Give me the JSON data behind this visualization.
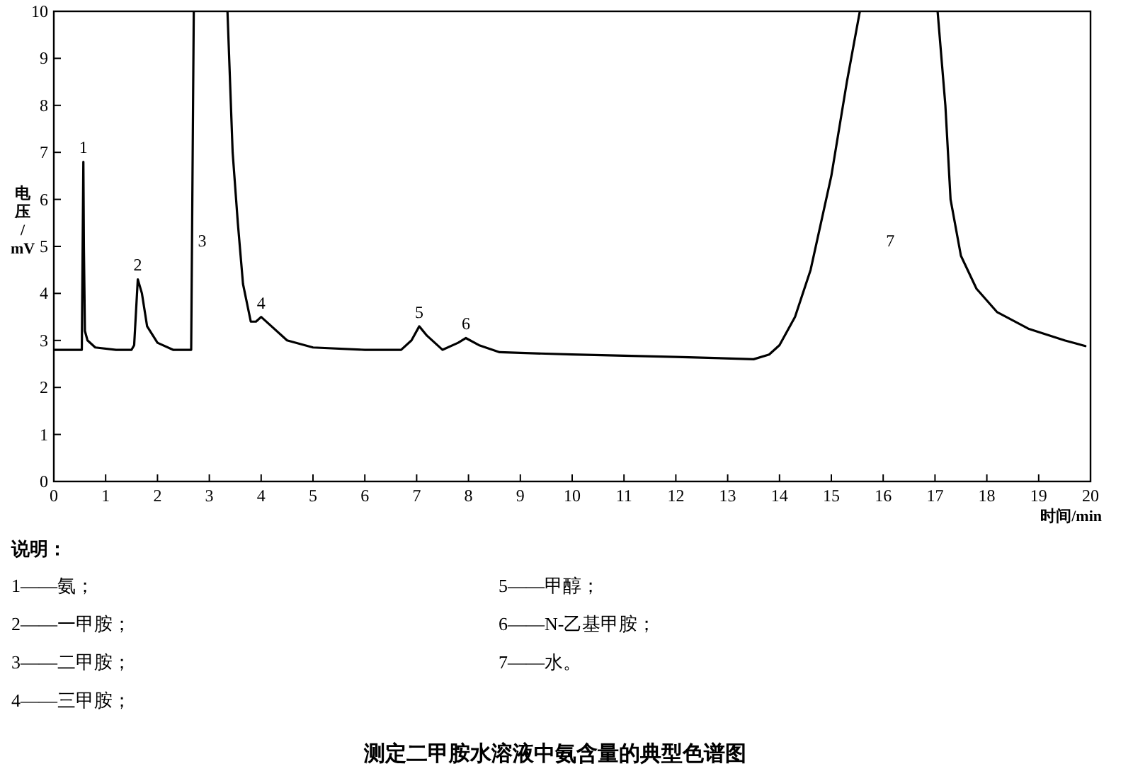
{
  "chart_data": {
    "type": "line",
    "title": "测定二甲胺水溶液中氨含量的典型色谱图",
    "xlabel": "时间/min",
    "ylabel": "电压/mV",
    "x": [
      0,
      0.54,
      0.56,
      0.57,
      0.58,
      0.6,
      0.65,
      0.8,
      1.2,
      1.5,
      1.55,
      1.62,
      1.7,
      1.8,
      2.0,
      2.3,
      2.65,
      2.7,
      2.72,
      3.33,
      3.35,
      3.45,
      3.55,
      3.65,
      3.8,
      3.9,
      4.0,
      4.2,
      4.5,
      5.0,
      6.0,
      6.7,
      6.9,
      7.05,
      7.2,
      7.5,
      7.8,
      7.95,
      8.2,
      8.6,
      10,
      12,
      13.5,
      13.8,
      14.0,
      14.3,
      14.6,
      15.0,
      15.3,
      15.55,
      15.6,
      17.0,
      17.05,
      17.2,
      17.3,
      17.5,
      17.8,
      18.2,
      18.8,
      19.5,
      19.9
    ],
    "series": [
      {
        "color": "#000000",
        "values": [
          2.8,
          2.8,
          5.5,
          6.8,
          5.0,
          3.2,
          3.0,
          2.85,
          2.8,
          2.8,
          2.9,
          4.3,
          4.0,
          3.3,
          2.95,
          2.8,
          2.8,
          10,
          null,
          null,
          10,
          7,
          5.5,
          4.2,
          3.4,
          3.4,
          3.5,
          3.3,
          3.0,
          2.85,
          2.8,
          2.8,
          3.0,
          3.3,
          3.1,
          2.8,
          2.95,
          3.05,
          2.9,
          2.75,
          2.7,
          2.65,
          2.6,
          2.7,
          2.9,
          3.5,
          4.5,
          6.5,
          8.5,
          10,
          null,
          null,
          10,
          8,
          6,
          4.8,
          4.1,
          3.6,
          3.25,
          3.0,
          2.88
        ]
      }
    ],
    "xlim": [
      0,
      20
    ],
    "xticks": [
      0,
      1,
      2,
      3,
      4,
      5,
      6,
      7,
      8,
      9,
      10,
      11,
      12,
      13,
      14,
      15,
      16,
      17,
      18,
      19,
      20
    ],
    "ylim": [
      0,
      10
    ],
    "yticks": [
      0,
      1,
      2,
      3,
      4,
      5,
      6,
      7,
      8,
      9,
      10
    ],
    "grid": false,
    "marker": "none",
    "line_style": "solid",
    "annotations": [
      {
        "text": "1",
        "x": 0.57,
        "y": 6.8
      },
      {
        "text": "2",
        "x": 1.62,
        "y": 4.3
      },
      "3",
      {
        "text": "4",
        "x": 4.0,
        "y": 3.5
      },
      {
        "text": "5",
        "x": 7.05,
        "y": 3.3
      },
      {
        "text": "6",
        "x": 7.95,
        "y": 3.05
      },
      "7",
      "说明：",
      "1——氨；",
      "2——一甲胺；",
      "3——二甲胺；",
      "4——三甲胺；",
      "5——甲醇；",
      "6——N-乙基甲胺；",
      "7——水。"
    ]
  }
}
